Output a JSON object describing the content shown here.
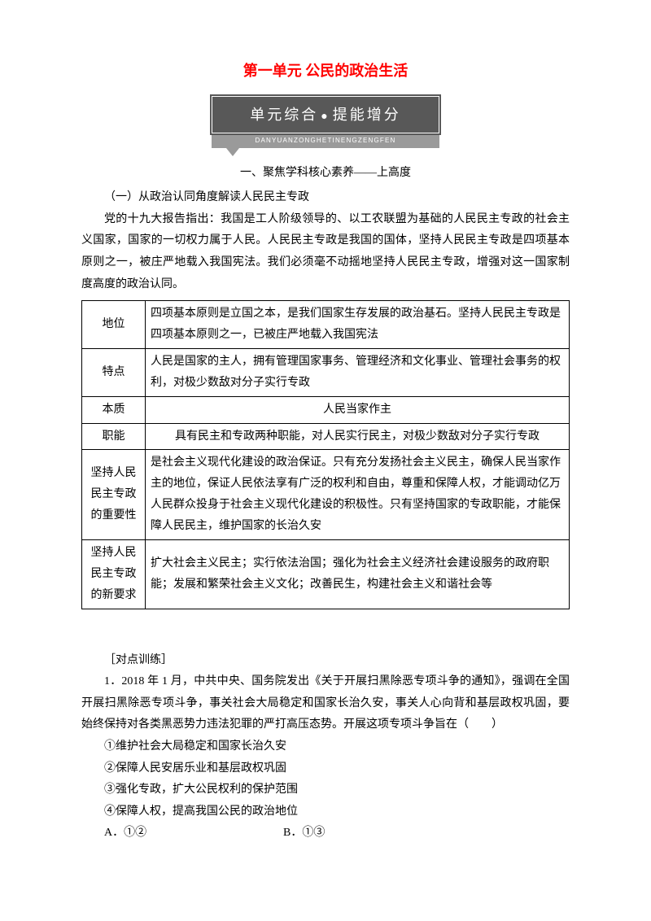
{
  "title": {
    "unit": "第一单元",
    "name": "公民的政治生活",
    "color": "#ff0000"
  },
  "banner": {
    "line1_left": "单元综合",
    "line1_right": "提能增分",
    "pinyin": "DANYUANZONGHETINENGZENGFEN",
    "bg_top": "#585858",
    "bg_bottom": "#9a9a9a",
    "text_color": "#ffffff"
  },
  "section1": {
    "heading": "一、聚焦学科核心素养——上高度"
  },
  "sub1": {
    "heading": "（一）从政治认同角度解读人民民主专政"
  },
  "intro": "党的十九大报告指出：我国是工人阶级领导的、以工农联盟为基础的人民民主专政的社会主义国家，国家的一切权力属于人民。人民民主专政是我国的国体，坚持人民民主专政是四项基本原则之一，被庄严地载入我国宪法。我们必须毫不动摇地坚持人民民主专政，增强对这一国家制度高度的政治认同。",
  "table": {
    "border_color": "#000000",
    "rows": [
      {
        "label": "地位",
        "content": "四项基本原则是立国之本，是我们国家生存发展的政治基石。坚持人民民主专政是四项基本原则之一，已被庄严地载入我国宪法",
        "center": false
      },
      {
        "label": "特点",
        "content": "人民是国家的主人，拥有管理国家事务、管理经济和文化事业、管理社会事务的权利，对极少数敌对分子实行专政",
        "center": false
      },
      {
        "label": "本质",
        "content": "人民当家作主",
        "center": true
      },
      {
        "label": "职能",
        "content": "具有民主和专政两种职能，对人民实行民主，对极少数敌对分子实行专政",
        "center": true
      },
      {
        "label": "坚持人民民主专政的重要性",
        "content": "是社会主义现代化建设的政治保证。只有充分发扬社会主义民主，确保人民当家作主的地位，保证人民依法享有广泛的权利和自由，尊重和保障人权，才能调动亿万人民群众投身于社会主义现代化建设的积极性。只有坚持国家的专政职能，才能保障人民民主，维护国家的长治久安",
        "center": false
      },
      {
        "label": "坚持人民民主专政的新要求",
        "content": "扩大社会主义民主；实行依法治国；强化为社会主义经济社会建设服务的政府职能；发展和繁荣社会主义文化；改善民生，构建社会主义和谐社会等",
        "center": false
      }
    ]
  },
  "exercise": {
    "header": "［对点训练］",
    "q1_stem": "1．2018 年 1 月，中共中央、国务院发出《关于开展扫黑除恶专项斗争的通知》，强调在全国开展扫黑除恶专项斗争，事关社会大局稳定和国家长治久安，事关人心向背和基层政权巩固，要始终保持对各类黑恶势力违法犯罪的严打高压态势。开展这项专项斗争旨在（　　）",
    "opts": [
      "①维护社会大局稳定和国家长治久安",
      "②保障人民安居乐业和基层政权巩固",
      "③强化专政，扩大公民权利的保护范围",
      "④保障人权，提高我国公民的政治地位"
    ],
    "choice_a": "A．①②",
    "choice_b": "B．①③"
  }
}
